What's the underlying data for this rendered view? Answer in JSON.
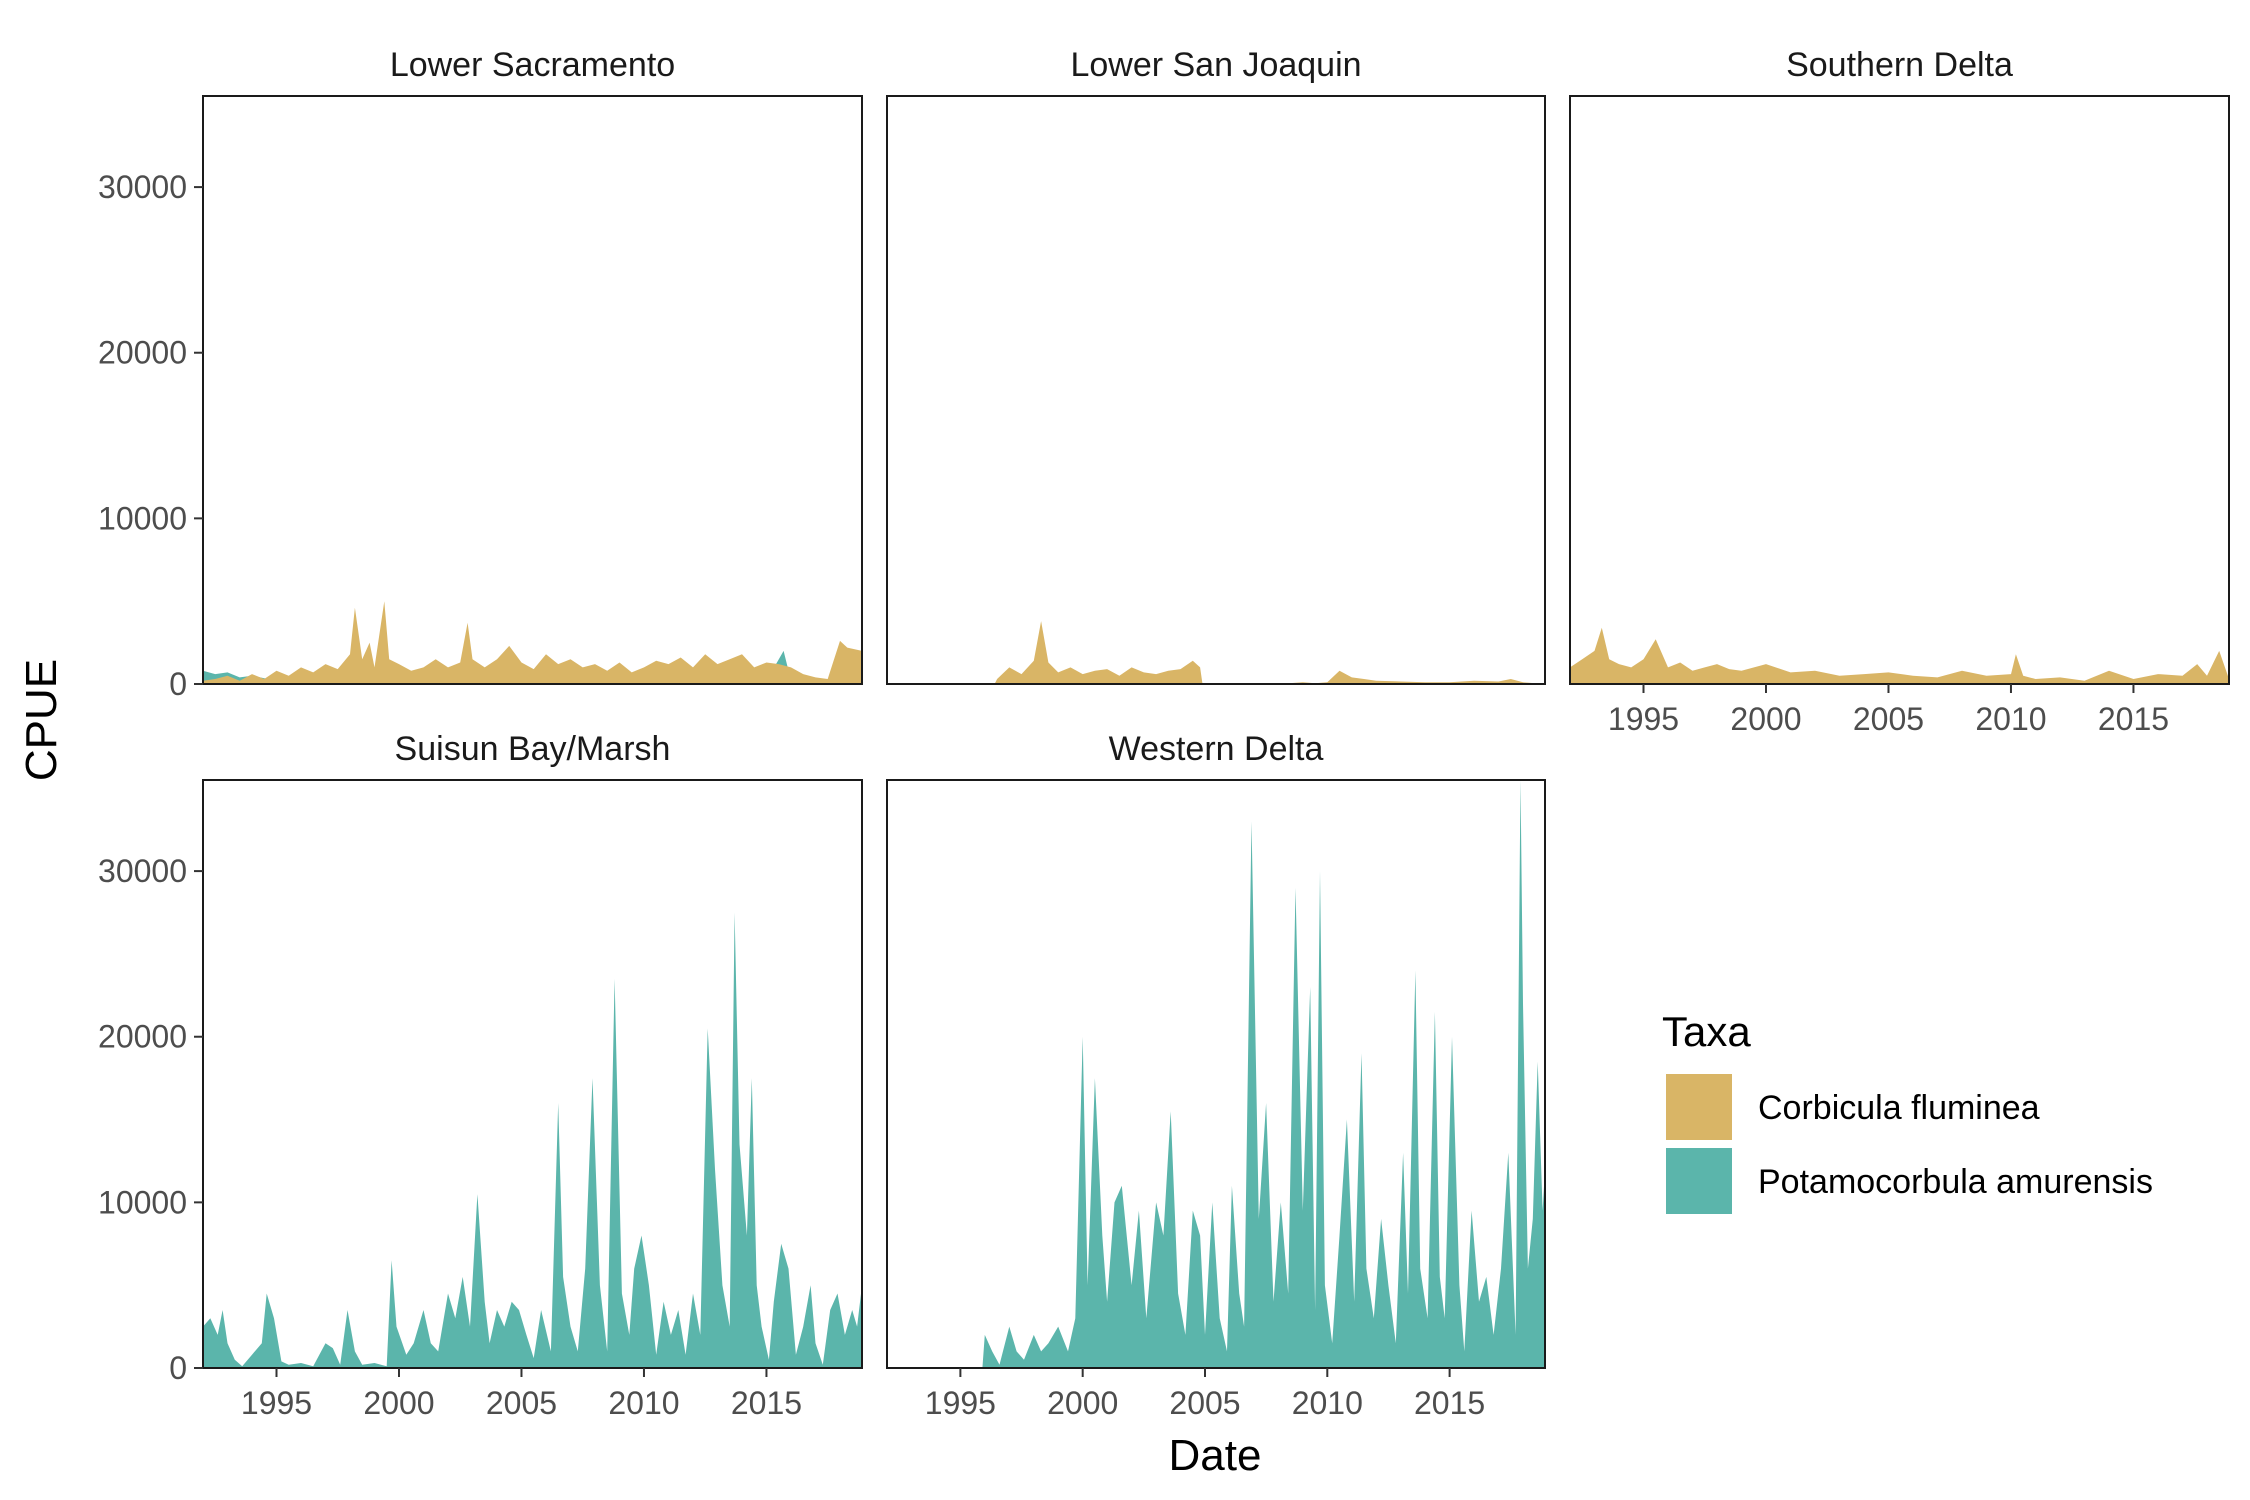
{
  "chart_data": {
    "type": "area",
    "layout": "facet-wrap 3 columns",
    "xlabel": "Date",
    "ylabel": "CPUE",
    "xlim": [
      1992.0,
      2018.9
    ],
    "ylim": [
      0,
      35500
    ],
    "x_ticks": [
      1995,
      2000,
      2005,
      2010,
      2015
    ],
    "y_ticks": [
      0,
      10000,
      20000,
      30000
    ],
    "grid": false,
    "legend": {
      "title": "Taxa",
      "position": "right",
      "entries": [
        {
          "label": "Corbicula fluminea",
          "color": "#D9B566"
        },
        {
          "label": "Potamocorbula amurensis",
          "color": "#5BB5AB"
        }
      ]
    },
    "panels": [
      {
        "title": "Lower Sacramento",
        "series": [
          {
            "name": "Potamocorbula amurensis",
            "x": [
              1992.0,
              1992.5,
              1993.0,
              1993.5,
              1994.0,
              1995.0,
              1996.0,
              1997.0,
              1998.0,
              1999.0,
              2000.0,
              2001.0,
              2002.0,
              2003.0,
              2004.0,
              2005.0,
              2005.3,
              2006.0,
              2007.0,
              2008.0,
              2009.0,
              2010.0,
              2011.0,
              2012.0,
              2013.0,
              2014.0,
              2014.3,
              2015.0,
              2015.7,
              2016.0,
              2017.0,
              2018.0,
              2018.9
            ],
            "y": [
              800,
              600,
              700,
              400,
              500,
              200,
              150,
              200,
              100,
              150,
              100,
              150,
              100,
              100,
              150,
              100,
              700,
              100,
              150,
              200,
              100,
              150,
              100,
              150,
              200,
              150,
              800,
              200,
              2000,
              200,
              100,
              150,
              100
            ]
          },
          {
            "name": "Corbicula fluminea",
            "x": [
              1992.0,
              1992.5,
              1993.0,
              1993.5,
              1994.0,
              1994.5,
              1995.0,
              1995.5,
              1996.0,
              1996.5,
              1997.0,
              1997.5,
              1998.0,
              1998.2,
              1998.5,
              1998.8,
              1999.0,
              1999.4,
              1999.6,
              2000.0,
              2000.5,
              2001.0,
              2001.5,
              2002.0,
              2002.5,
              2002.8,
              2003.0,
              2003.5,
              2004.0,
              2004.5,
              2005.0,
              2005.5,
              2006.0,
              2006.5,
              2007.0,
              2007.5,
              2008.0,
              2008.5,
              2009.0,
              2009.5,
              2010.0,
              2010.5,
              2011.0,
              2011.5,
              2012.0,
              2012.5,
              2013.0,
              2013.5,
              2014.0,
              2014.5,
              2015.0,
              2015.5,
              2016.0,
              2016.5,
              2017.0,
              2017.5,
              2018.0,
              2018.3,
              2018.9
            ],
            "y": [
              200,
              300,
              500,
              200,
              600,
              300,
              800,
              500,
              1000,
              700,
              1200,
              900,
              1800,
              4600,
              1500,
              2500,
              1000,
              5000,
              1500,
              1200,
              800,
              1000,
              1500,
              1000,
              1300,
              3700,
              1500,
              1000,
              1500,
              2300,
              1300,
              900,
              1800,
              1200,
              1500,
              1000,
              1200,
              800,
              1300,
              700,
              1000,
              1400,
              1200,
              1600,
              1000,
              1800,
              1200,
              1500,
              1800,
              1000,
              1300,
              1200,
              1000,
              600,
              400,
              300,
              2600,
              2200,
              2000
            ]
          }
        ]
      },
      {
        "title": "Lower San Joaquin",
        "series": [
          {
            "name": "Potamocorbula amurensis",
            "x": [
              1992.0,
              2018.9
            ],
            "y": [
              0,
              0
            ]
          },
          {
            "name": "Corbicula fluminea",
            "x": [
              1992.0,
              1996.4,
              1996.5,
              1997.0,
              1997.5,
              1998.0,
              1998.3,
              1998.6,
              1999.0,
              1999.5,
              2000.0,
              2000.5,
              2001.0,
              2001.5,
              2002.0,
              2002.5,
              2003.0,
              2003.5,
              2004.0,
              2004.5,
              2004.8,
              2004.9,
              2005.0,
              2006.0,
              2007.0,
              2008.0,
              2009.0,
              2009.5,
              2010.0,
              2010.5,
              2011.0,
              2011.5,
              2012.0,
              2013.0,
              2014.0,
              2015.0,
              2016.0,
              2017.0,
              2017.5,
              2018.0,
              2018.9
            ],
            "y": [
              0,
              0,
              300,
              1000,
              600,
              1400,
              3800,
              1300,
              700,
              1000,
              600,
              800,
              900,
              500,
              1000,
              700,
              600,
              800,
              900,
              1400,
              1000,
              0,
              0,
              0,
              0,
              0,
              100,
              50,
              100,
              800,
              400,
              300,
              200,
              150,
              100,
              100,
              200,
              150,
              300,
              100,
              0
            ]
          }
        ]
      },
      {
        "title": "Southern Delta",
        "series": [
          {
            "name": "Potamocorbula amurensis",
            "x": [
              1992.0,
              2018.9
            ],
            "y": [
              0,
              0
            ]
          },
          {
            "name": "Corbicula fluminea",
            "x": [
              1992.0,
              1992.5,
              1993.0,
              1993.3,
              1993.6,
              1994.0,
              1994.5,
              1995.0,
              1995.5,
              1996.0,
              1996.5,
              1997.0,
              1997.5,
              1998.0,
              1998.5,
              1999.0,
              2000.0,
              2001.0,
              2002.0,
              2003.0,
              2004.0,
              2005.0,
              2006.0,
              2007.0,
              2008.0,
              2009.0,
              2010.0,
              2010.2,
              2010.5,
              2011.0,
              2012.0,
              2013.0,
              2014.0,
              2015.0,
              2016.0,
              2017.0,
              2017.6,
              2018.0,
              2018.5,
              2018.9
            ],
            "y": [
              1000,
              1500,
              2000,
              3400,
              1500,
              1200,
              1000,
              1500,
              2700,
              1000,
              1300,
              800,
              1000,
              1200,
              900,
              800,
              1200,
              700,
              800,
              500,
              600,
              700,
              500,
              400,
              800,
              500,
              600,
              1800,
              500,
              300,
              400,
              200,
              800,
              300,
              600,
              500,
              1200,
              500,
              2000,
              300
            ]
          }
        ]
      },
      {
        "title": "Suisun Bay/Marsh",
        "series": [
          {
            "name": "Corbicula fluminea",
            "x": [
              1992.0,
              2018.9
            ],
            "y": [
              0,
              0
            ]
          },
          {
            "name": "Potamocorbula amurensis",
            "x": [
              1992.0,
              1992.3,
              1992.6,
              1992.8,
              1993.0,
              1993.3,
              1993.6,
              1994.0,
              1994.4,
              1994.6,
              1994.9,
              1995.2,
              1995.5,
              1996.0,
              1996.5,
              1997.0,
              1997.3,
              1997.6,
              1997.9,
              1998.2,
              1998.5,
              1999.0,
              1999.5,
              1999.7,
              1999.9,
              2000.3,
              2000.6,
              2001.0,
              2001.3,
              2001.6,
              2002.0,
              2002.3,
              2002.6,
              2002.9,
              2003.2,
              2003.5,
              2003.7,
              2004.0,
              2004.3,
              2004.6,
              2004.9,
              2005.2,
              2005.5,
              2005.8,
              2006.2,
              2006.5,
              2006.7,
              2007.0,
              2007.3,
              2007.6,
              2007.9,
              2008.2,
              2008.5,
              2008.8,
              2009.1,
              2009.4,
              2009.6,
              2009.9,
              2010.2,
              2010.5,
              2010.8,
              2011.1,
              2011.4,
              2011.7,
              2012.0,
              2012.3,
              2012.6,
              2012.9,
              2013.2,
              2013.5,
              2013.7,
              2013.9,
              2014.2,
              2014.4,
              2014.6,
              2014.8,
              2015.1,
              2015.3,
              2015.6,
              2015.9,
              2016.2,
              2016.5,
              2016.8,
              2017.0,
              2017.3,
              2017.6,
              2017.9,
              2018.2,
              2018.5,
              2018.7,
              2018.9
            ],
            "y": [
              2500,
              3000,
              2000,
              3500,
              1500,
              500,
              100,
              800,
              1500,
              4500,
              3000,
              400,
              200,
              300,
              100,
              1500,
              1200,
              200,
              3500,
              1000,
              200,
              300,
              100,
              6500,
              2500,
              800,
              1500,
              3500,
              1500,
              1000,
              4500,
              3000,
              5500,
              2500,
              10500,
              4000,
              1500,
              3500,
              2500,
              4000,
              3500,
              2000,
              600,
              3500,
              1000,
              16000,
              5500,
              2500,
              1000,
              6000,
              17500,
              5000,
              1000,
              23500,
              4500,
              2000,
              6000,
              8000,
              5000,
              800,
              4000,
              2000,
              3500,
              800,
              4500,
              2000,
              20500,
              12000,
              5000,
              2500,
              27500,
              13500,
              8000,
              17500,
              5000,
              2500,
              500,
              4000,
              7500,
              6000,
              800,
              2500,
              5000,
              1500,
              200,
              3500,
              4500,
              2000,
              3500,
              2500,
              5000
            ]
          }
        ]
      },
      {
        "title": "Western Delta",
        "series": [
          {
            "name": "Corbicula fluminea",
            "x": [
              1992.0,
              2018.9
            ],
            "y": [
              0,
              0
            ]
          },
          {
            "name": "Potamocorbula amurensis",
            "x": [
              1992.0,
              1995.9,
              1996.0,
              1996.3,
              1996.6,
              1997.0,
              1997.3,
              1997.6,
              1998.0,
              1998.3,
              1998.6,
              1999.0,
              1999.4,
              1999.7,
              2000.0,
              2000.2,
              2000.5,
              2000.8,
              2001.0,
              2001.3,
              2001.6,
              2002.0,
              2002.3,
              2002.6,
              2003.0,
              2003.3,
              2003.6,
              2003.9,
              2004.2,
              2004.5,
              2004.8,
              2005.0,
              2005.3,
              2005.6,
              2005.9,
              2006.1,
              2006.4,
              2006.6,
              2006.9,
              2007.2,
              2007.5,
              2007.8,
              2008.1,
              2008.4,
              2008.7,
              2009.0,
              2009.3,
              2009.5,
              2009.7,
              2009.9,
              2010.2,
              2010.5,
              2010.8,
              2011.1,
              2011.4,
              2011.6,
              2011.9,
              2012.2,
              2012.5,
              2012.8,
              2013.1,
              2013.3,
              2013.6,
              2013.8,
              2014.1,
              2014.4,
              2014.6,
              2014.8,
              2015.1,
              2015.4,
              2015.6,
              2015.9,
              2016.2,
              2016.5,
              2016.8,
              2017.1,
              2017.4,
              2017.7,
              2017.9,
              2018.0,
              2018.2,
              2018.4,
              2018.6,
              2018.8,
              2018.9
            ],
            "y": [
              0,
              0,
              2000,
              1000,
              200,
              2500,
              1000,
              500,
              2000,
              1000,
              1500,
              2500,
              1000,
              3000,
              20000,
              5000,
              17500,
              8000,
              4000,
              10000,
              11000,
              5000,
              9500,
              3000,
              10000,
              8000,
              15500,
              4500,
              2000,
              9500,
              8000,
              2000,
              10000,
              3000,
              1000,
              11000,
              4500,
              2500,
              33000,
              9000,
              16000,
              4000,
              10000,
              4500,
              29000,
              9500,
              23000,
              3500,
              30000,
              5000,
              1500,
              8000,
              15000,
              4000,
              19000,
              6000,
              3000,
              9000,
              5000,
              1500,
              13000,
              4500,
              24000,
              6000,
              3000,
              21500,
              5500,
              3000,
              20000,
              5000,
              1000,
              9500,
              4000,
              5500,
              2000,
              6000,
              13000,
              2000,
              35500,
              22000,
              6000,
              9000,
              18500,
              9500,
              12000
            ]
          }
        ]
      }
    ]
  }
}
